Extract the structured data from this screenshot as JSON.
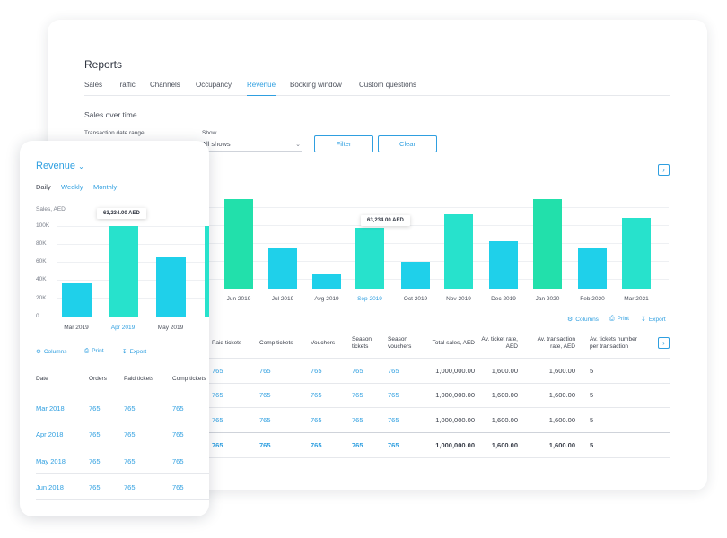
{
  "desktop": {
    "title": "Reports",
    "tabs": [
      "Sales",
      "Traffic",
      "Channels",
      "Occupancy",
      "Revenue",
      "Booking window",
      "Custom questions"
    ],
    "active_tab": "Revenue",
    "section_title": "Sales over time",
    "filters": {
      "date_range_label": "Transaction date range",
      "show_label": "Show",
      "show_value": "All shows",
      "filter_button": "Filter",
      "clear_button": "Clear"
    },
    "tooltip": "63,234.00 AED",
    "tools": {
      "columns": "Columns",
      "print": "Print",
      "export": "Export"
    },
    "table": {
      "headers": [
        "Paid tickets",
        "Comp tickets",
        "Vouchers",
        "Season tickets",
        "Season vouchers",
        "Total sales, AED",
        "Av. ticket rate, AED",
        "Av. transaction rate, AED",
        "Av. tickets number per transaction"
      ],
      "rows": [
        [
          "765",
          "765",
          "765",
          "765",
          "765",
          "1,000,000.00",
          "1,600.00",
          "1,600.00",
          "5"
        ],
        [
          "765",
          "765",
          "765",
          "765",
          "765",
          "1,000,000.00",
          "1,600.00",
          "1,600.00",
          "5"
        ],
        [
          "765",
          "765",
          "765",
          "765",
          "765",
          "1,000,000.00",
          "1,600.00",
          "1,600.00",
          "5"
        ]
      ],
      "total_row": [
        "765",
        "765",
        "765",
        "765",
        "765",
        "1,000,000.00",
        "1,600.00",
        "1,600.00",
        "5"
      ]
    }
  },
  "mobile": {
    "title": "Revenue",
    "period_tabs": [
      "Daily",
      "Weekly",
      "Monthly"
    ],
    "active_period": "Daily",
    "ylabel": "Sales, AED",
    "tooltip": "63,234.00 AED",
    "tools": {
      "columns": "Columns",
      "print": "Print",
      "export": "Export"
    },
    "table": {
      "headers": [
        "Date",
        "Orders",
        "Paid tickets",
        "Comp tickets"
      ],
      "rows": [
        [
          "Mar 2018",
          "765",
          "765",
          "765"
        ],
        [
          "Apr 2018",
          "765",
          "765",
          "765"
        ],
        [
          "May 2018",
          "765",
          "765",
          "765"
        ],
        [
          "Jun 2018",
          "765",
          "765",
          "765"
        ]
      ]
    }
  },
  "colors": {
    "accent": "#2f9fe0",
    "bar_blue": "#1fd0ea",
    "bar_teal": "#27e2cc",
    "bar_green": "#22e0ab"
  },
  "chart_data": [
    {
      "type": "bar",
      "categories": [
        "Apr 2019",
        "May 2019",
        "Jun 2019",
        "Jul 2019",
        "Avg 2019",
        "Sep 2019",
        "Oct 2019",
        "Nov 2019",
        "Dec 2019",
        "Jan 2020",
        "Feb 2020",
        "Mar 2021"
      ],
      "category_labels": [
        "r 2019",
        "y 2019",
        "Jun 2019",
        "Jul 2019",
        "Avg 2019",
        "Sep 2019",
        "Oct 2019",
        "Nov 2019",
        "Dec 2019",
        "Jan 2020",
        "Feb 2020",
        "Mar 2021"
      ],
      "values": [
        65000,
        100000,
        101000,
        45000,
        16000,
        69000,
        30000,
        84000,
        54000,
        101000,
        46000,
        80000
      ],
      "colors": [
        "bar_blue",
        "bar_teal",
        "bar_green",
        "bar_blue",
        "bar_blue",
        "bar_teal",
        "bar_blue",
        "bar_teal",
        "bar_blue",
        "bar_green",
        "bar_blue",
        "bar_teal"
      ],
      "highlighted": "Sep 2019",
      "ylim": [
        0,
        110000
      ]
    },
    {
      "type": "bar",
      "categories": [
        "Mar 2019",
        "Apr 2019",
        "May 2019",
        "Jun 2019"
      ],
      "category_labels": [
        "Mar 2019",
        "Apr 2019",
        "May 2019",
        "Ju"
      ],
      "values": [
        37000,
        100000,
        65000,
        100000
      ],
      "colors": [
        "bar_blue",
        "bar_teal",
        "bar_blue",
        "bar_teal"
      ],
      "highlighted": "Apr 2019",
      "ylabel": "Sales, AED",
      "yticks": [
        "0",
        "20K",
        "40K",
        "60K",
        "80K",
        "100K"
      ],
      "ylim": [
        0,
        100000
      ]
    }
  ]
}
